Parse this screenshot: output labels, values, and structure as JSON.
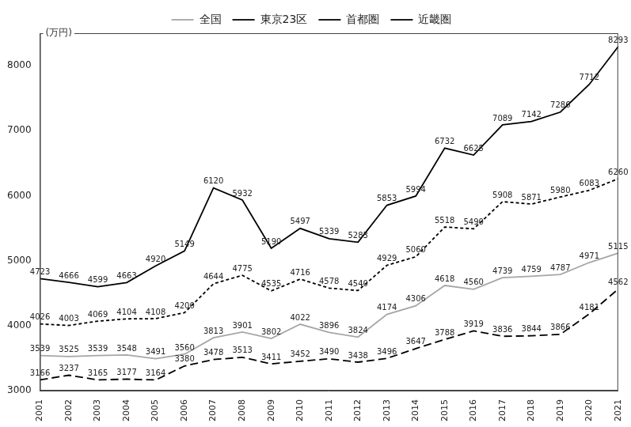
{
  "chart_data": {
    "type": "line",
    "y_label": "(万円)",
    "categories": [
      "2001",
      "2002",
      "2003",
      "2004",
      "2005",
      "2006",
      "2007",
      "2008",
      "2009",
      "2010",
      "2011",
      "2012",
      "2013",
      "2014",
      "2015",
      "2016",
      "2017",
      "2018",
      "2019",
      "2020",
      "2021"
    ],
    "series": [
      {
        "name": "全国",
        "color": "#a6a6a6",
        "line_style": "solid",
        "values": [
          3539,
          3525,
          3539,
          3548,
          3491,
          3560,
          3813,
          3901,
          3802,
          4022,
          3896,
          3824,
          4174,
          4306,
          4618,
          4560,
          4739,
          4759,
          4787,
          4971,
          5115
        ]
      },
      {
        "name": "東京23区",
        "color": "#000000",
        "line_style": "solid",
        "values": [
          4723,
          4666,
          4599,
          4663,
          4920,
          5149,
          6120,
          5932,
          5190,
          5497,
          5339,
          5283,
          5853,
          5994,
          6732,
          6625,
          7089,
          7142,
          7286,
          7712,
          8293
        ]
      },
      {
        "name": "首都圏",
        "color": "#000000",
        "line_style": "dashed",
        "values": [
          4026,
          4003,
          4069,
          4104,
          4108,
          4200,
          4644,
          4775,
          4535,
          4716,
          4578,
          4540,
          4929,
          5060,
          5518,
          5490,
          5908,
          5871,
          5980,
          6083,
          6260
        ]
      },
      {
        "name": "近畿圏",
        "color": "#000000",
        "line_style": "long_dashed",
        "values": [
          3166,
          3237,
          3165,
          3177,
          3164,
          3380,
          3478,
          3513,
          3411,
          3452,
          3490,
          3438,
          3496,
          3647,
          3788,
          3919,
          3836,
          3844,
          3866,
          4181,
          4562
        ]
      }
    ],
    "ylim": [
      3000,
      8500
    ],
    "yticks": [
      3000,
      4000,
      5000,
      6000,
      7000,
      8000
    ],
    "grid": false,
    "legend": "top",
    "data_labels": true
  }
}
